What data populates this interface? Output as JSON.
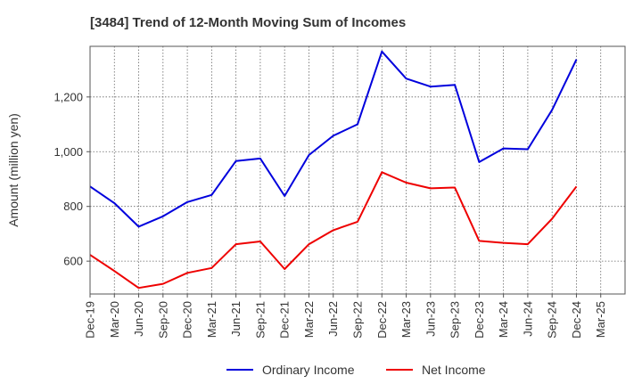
{
  "chart_data": {
    "type": "line",
    "title": "[3484]  Trend of 12-Month Moving Sum of Incomes",
    "xlabel": "",
    "ylabel": "Amount (million yen)",
    "categories": [
      "Dec-19",
      "Mar-20",
      "Jun-20",
      "Sep-20",
      "Dec-20",
      "Mar-21",
      "Jun-21",
      "Sep-21",
      "Dec-21",
      "Mar-22",
      "Jun-22",
      "Sep-22",
      "Dec-22",
      "Mar-23",
      "Jun-23",
      "Sep-23",
      "Dec-23",
      "Mar-24",
      "Jun-24",
      "Sep-24",
      "Dec-24",
      "Mar-25"
    ],
    "yticks": [
      600,
      800,
      1000,
      1200
    ],
    "ytick_labels": [
      "600",
      "800",
      "1,000",
      "1,200"
    ],
    "ylim": [
      480,
      1385
    ],
    "grid": true,
    "legend_position": "bottom",
    "series": [
      {
        "name": "Ordinary Income",
        "color": "#0000dd",
        "values": [
          873,
          812,
          726,
          764,
          816,
          842,
          966,
          975,
          838,
          988,
          1058,
          1100,
          1366,
          1267,
          1238,
          1244,
          962,
          1012,
          1009,
          1153,
          1337,
          null
        ]
      },
      {
        "name": "Net Income",
        "color": "#ee0000",
        "values": [
          623,
          564,
          502,
          517,
          557,
          575,
          662,
          672,
          571,
          662,
          713,
          744,
          925,
          887,
          866,
          869,
          674,
          667,
          662,
          755,
          873,
          null
        ]
      }
    ]
  }
}
